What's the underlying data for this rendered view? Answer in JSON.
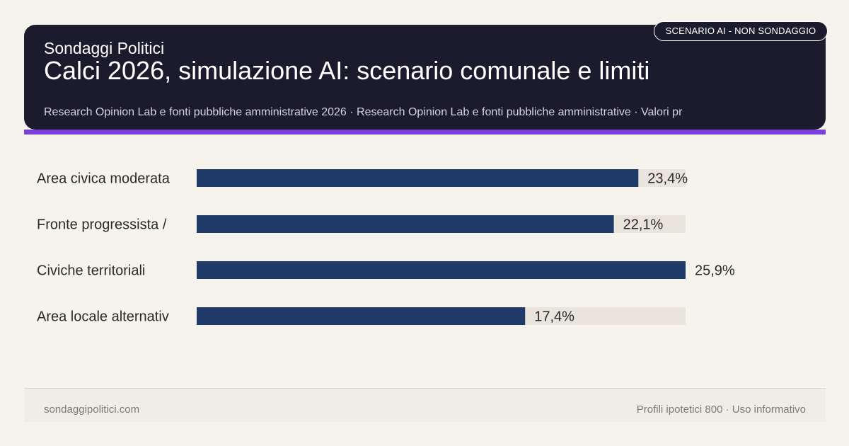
{
  "header": {
    "brand": "Sondaggi Politici",
    "title": "Calci 2026, simulazione AI: scenario comunale e limiti",
    "subtitle": "Research Opinion Lab e fonti pubbliche amministrative 2026 · Research Opinion Lab e fonti pubbliche amministrative · Valori pr",
    "badge": "SCENARIO AI - NON SONDAGGIO"
  },
  "colors": {
    "header_bg": "#1c1b2e",
    "accent": "#7b3fe0",
    "bar": "#1f3a68",
    "track": "#e9e4dc",
    "background": "#f6f3ec"
  },
  "chart_data": {
    "type": "bar",
    "orientation": "horizontal",
    "categories": [
      "Area civica moderata",
      "Fronte progressista /",
      "Civiche territoriali",
      "Area locale alternativ"
    ],
    "values": [
      23.4,
      22.1,
      25.9,
      17.4
    ],
    "value_labels": [
      "23,4%",
      "22,1%",
      "25,9%",
      "17,4%"
    ],
    "xlim": [
      0,
      25.9
    ],
    "unit": "%",
    "grid": false,
    "legend": "none"
  },
  "footer": {
    "site": "sondaggipolitici.com",
    "note": "Profili ipotetici 800 · Uso informativo"
  }
}
